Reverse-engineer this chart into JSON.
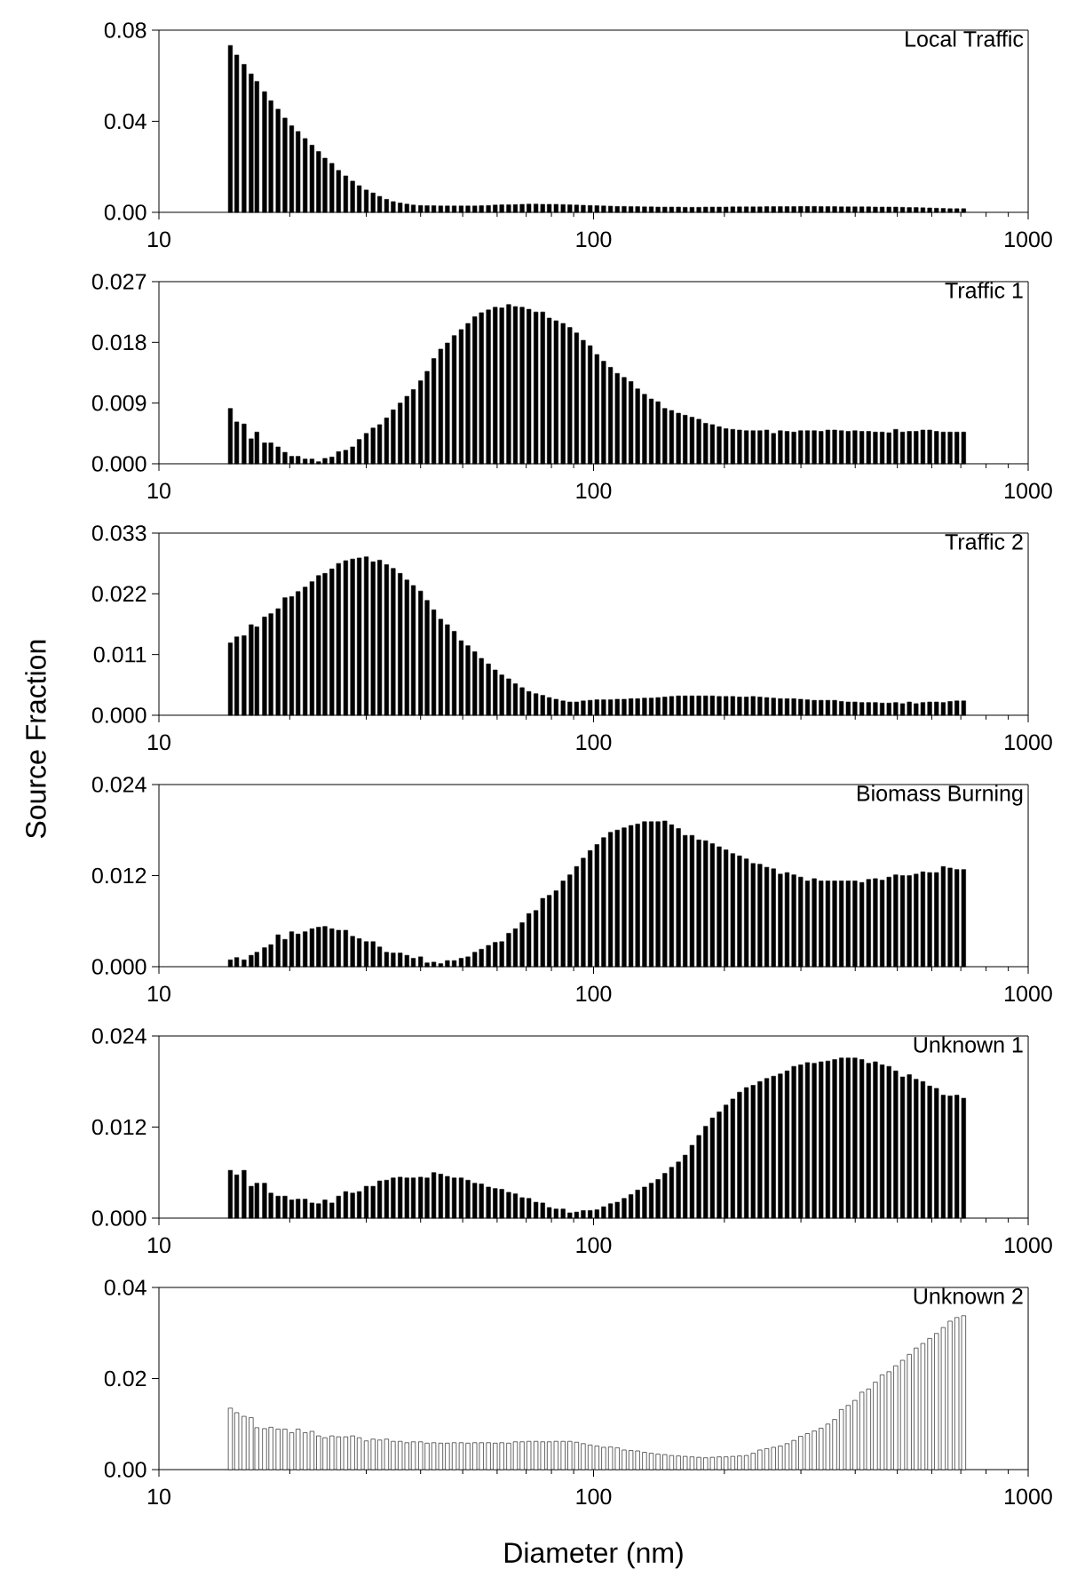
{
  "chart_data": [
    {
      "type": "bar",
      "title": "Local Traffic",
      "log": "x",
      "color": "#000000",
      "x": [
        14.6,
        15.1,
        15.7,
        16.3,
        16.8,
        17.5,
        18.1,
        18.8,
        19.5,
        20.2,
        20.9,
        21.7,
        22.5,
        23.3,
        24.1,
        25.0,
        25.9,
        26.9,
        27.9,
        28.9,
        30.0,
        31.1,
        32.2,
        33.4,
        34.6,
        35.9,
        37.2,
        38.5,
        40.0,
        41.4,
        42.9,
        44.5,
        46.1,
        47.8,
        49.6,
        51.4,
        53.3,
        55.2,
        57.3,
        59.4,
        61.5,
        63.8,
        66.1,
        68.5,
        71.0,
        73.7,
        76.4,
        79.1,
        82.0,
        85.1,
        88.2,
        91.4,
        94.7,
        98.2,
        101.8,
        105.5,
        109.4,
        113.4,
        117.6,
        121.9,
        126.3,
        131.0,
        135.8,
        140.7,
        145.9,
        151.2,
        156.8,
        162.5,
        168.5,
        174.7,
        181.1,
        187.7,
        194.6,
        201.7,
        209.1,
        216.7,
        224.7,
        232.9,
        241.4,
        250.3,
        259.5,
        269.0,
        278.8,
        289.0,
        299.6,
        310.6,
        322.0,
        333.8,
        346.0,
        358.7,
        371.8,
        385.4,
        399.5,
        414.2,
        429.4,
        445.1,
        461.4,
        478.3,
        495.8,
        514.0,
        532.8,
        552.3,
        572.5,
        593.5,
        615.3,
        637.8,
        661.2,
        685.4,
        710.5
      ],
      "values": [
        0.0733,
        0.0691,
        0.065,
        0.0608,
        0.0575,
        0.053,
        0.049,
        0.0453,
        0.0414,
        0.038,
        0.0355,
        0.0324,
        0.0295,
        0.0267,
        0.0238,
        0.0215,
        0.0184,
        0.016,
        0.0137,
        0.0117,
        0.0098,
        0.0085,
        0.007,
        0.0057,
        0.0047,
        0.0041,
        0.0036,
        0.0032,
        0.003,
        0.0029,
        0.0029,
        0.0028,
        0.0028,
        0.0028,
        0.0028,
        0.0028,
        0.0028,
        0.0029,
        0.003,
        0.0032,
        0.0033,
        0.0033,
        0.0034,
        0.0035,
        0.0036,
        0.0036,
        0.0035,
        0.0035,
        0.0035,
        0.0034,
        0.0033,
        0.0032,
        0.0031,
        0.003,
        0.0029,
        0.0028,
        0.0027,
        0.0026,
        0.0026,
        0.0025,
        0.0025,
        0.0024,
        0.0024,
        0.0023,
        0.0023,
        0.0023,
        0.0023,
        0.0022,
        0.0022,
        0.0022,
        0.0023,
        0.0023,
        0.0023,
        0.0023,
        0.0024,
        0.0024,
        0.0024,
        0.0024,
        0.0024,
        0.0025,
        0.0025,
        0.0025,
        0.0025,
        0.0025,
        0.0026,
        0.0026,
        0.0026,
        0.0025,
        0.0025,
        0.0025,
        0.0024,
        0.0024,
        0.0024,
        0.0024,
        0.0024,
        0.0023,
        0.0023,
        0.0023,
        0.0023,
        0.0022,
        0.0021,
        0.0021,
        0.002,
        0.0019,
        0.0018,
        0.0017,
        0.0016,
        0.0016,
        0.0016
      ],
      "xlim": [
        10,
        1000
      ],
      "xticks": [
        10,
        {
          "value": 20,
          "label": null
        },
        {
          "value": 30,
          "label": null
        },
        {
          "value": 40,
          "label": null
        },
        {
          "value": 50,
          "label": null
        },
        {
          "value": 60,
          "label": null
        },
        {
          "value": 70,
          "label": null
        },
        {
          "value": 80,
          "label": null
        },
        {
          "value": 90,
          "label": null
        },
        100,
        {
          "value": 200,
          "label": null
        },
        {
          "value": 300,
          "label": null
        },
        {
          "value": 400,
          "label": null
        },
        {
          "value": 500,
          "label": null
        },
        {
          "value": 600,
          "label": null
        },
        {
          "value": 700,
          "label": null
        },
        {
          "value": 800,
          "label": null
        },
        {
          "value": 900,
          "label": null
        },
        1000
      ],
      "ylim": [
        0,
        0.08
      ],
      "yticks": [
        {
          "value": 0,
          "label": "0.00"
        },
        {
          "value": 0.04,
          "label": "0.04"
        },
        {
          "value": 0.08,
          "label": "0.08"
        }
      ]
    },
    {
      "type": "bar",
      "title": "Traffic 1",
      "log": "x",
      "color": "#000000",
      "x": [
        14.6,
        15.1,
        15.7,
        16.3,
        16.8,
        17.5,
        18.1,
        18.8,
        19.5,
        20.2,
        20.9,
        21.7,
        22.5,
        23.3,
        24.1,
        25.0,
        25.9,
        26.9,
        27.9,
        28.9,
        30.0,
        31.1,
        32.2,
        33.4,
        34.6,
        35.9,
        37.2,
        38.5,
        40.0,
        41.4,
        42.9,
        44.5,
        46.1,
        47.8,
        49.6,
        51.4,
        53.3,
        55.2,
        57.3,
        59.4,
        61.5,
        63.8,
        66.1,
        68.5,
        71.0,
        73.7,
        76.4,
        79.1,
        82.0,
        85.1,
        88.2,
        91.4,
        94.7,
        98.2,
        101.8,
        105.5,
        109.4,
        113.4,
        117.6,
        121.9,
        126.3,
        131.0,
        135.8,
        140.7,
        145.9,
        151.2,
        156.8,
        162.5,
        168.5,
        174.7,
        181.1,
        187.7,
        194.6,
        201.7,
        209.1,
        216.7,
        224.7,
        232.9,
        241.4,
        250.3,
        259.5,
        269.0,
        278.8,
        289.0,
        299.6,
        310.6,
        322.0,
        333.8,
        346.0,
        358.7,
        371.8,
        385.4,
        399.5,
        414.2,
        429.4,
        445.1,
        461.4,
        478.3,
        495.8,
        514.0,
        532.8,
        552.3,
        572.5,
        593.5,
        615.3,
        637.8,
        661.2,
        685.4,
        710.5
      ],
      "values": [
        0.0082,
        0.0062,
        0.0059,
        0.0037,
        0.0047,
        0.0031,
        0.0031,
        0.0025,
        0.0017,
        0.0011,
        0.0011,
        0.0007,
        0.0007,
        0.0003,
        0.0008,
        0.001,
        0.0018,
        0.002,
        0.0025,
        0.0036,
        0.0045,
        0.0053,
        0.0058,
        0.0068,
        0.008,
        0.009,
        0.01,
        0.011,
        0.0123,
        0.0137,
        0.0156,
        0.017,
        0.0179,
        0.019,
        0.0199,
        0.0208,
        0.0218,
        0.0224,
        0.0228,
        0.0232,
        0.0231,
        0.0236,
        0.0233,
        0.0232,
        0.0229,
        0.0225,
        0.0225,
        0.0216,
        0.0212,
        0.0208,
        0.0202,
        0.0194,
        0.0183,
        0.0175,
        0.0162,
        0.0152,
        0.0143,
        0.0134,
        0.0128,
        0.0122,
        0.0111,
        0.0103,
        0.0096,
        0.0092,
        0.0082,
        0.0079,
        0.0075,
        0.0072,
        0.0069,
        0.0066,
        0.006,
        0.0058,
        0.0055,
        0.0052,
        0.0051,
        0.005,
        0.0049,
        0.0049,
        0.0049,
        0.005,
        0.0045,
        0.0049,
        0.0048,
        0.0047,
        0.0049,
        0.0049,
        0.0049,
        0.0048,
        0.005,
        0.005,
        0.0049,
        0.0048,
        0.0049,
        0.0048,
        0.0048,
        0.0047,
        0.0047,
        0.0046,
        0.0051,
        0.0047,
        0.0048,
        0.0048,
        0.005,
        0.005,
        0.0048,
        0.0047,
        0.0047,
        0.0047,
        0.0047
      ],
      "xlim": [
        10,
        1000
      ],
      "xticks": [
        10,
        {
          "value": 20,
          "label": null
        },
        {
          "value": 30,
          "label": null
        },
        {
          "value": 40,
          "label": null
        },
        {
          "value": 50,
          "label": null
        },
        {
          "value": 60,
          "label": null
        },
        {
          "value": 70,
          "label": null
        },
        {
          "value": 80,
          "label": null
        },
        {
          "value": 90,
          "label": null
        },
        100,
        {
          "value": 200,
          "label": null
        },
        {
          "value": 300,
          "label": null
        },
        {
          "value": 400,
          "label": null
        },
        {
          "value": 500,
          "label": null
        },
        {
          "value": 600,
          "label": null
        },
        {
          "value": 700,
          "label": null
        },
        {
          "value": 800,
          "label": null
        },
        {
          "value": 900,
          "label": null
        },
        1000
      ],
      "ylim": [
        0,
        0.027
      ],
      "yticks": [
        {
          "value": 0,
          "label": "0.000"
        },
        {
          "value": 0.009,
          "label": "0.009"
        },
        {
          "value": 0.018,
          "label": "0.018"
        },
        {
          "value": 0.027,
          "label": "0.027"
        }
      ]
    },
    {
      "type": "bar",
      "title": "Traffic 2",
      "ylabel": "Source Fraction",
      "log": "x",
      "color": "#000000",
      "x": [
        14.6,
        15.1,
        15.7,
        16.3,
        16.8,
        17.5,
        18.1,
        18.8,
        19.5,
        20.2,
        20.9,
        21.7,
        22.5,
        23.3,
        24.1,
        25.0,
        25.9,
        26.9,
        27.9,
        28.9,
        30.0,
        31.1,
        32.2,
        33.4,
        34.6,
        35.9,
        37.2,
        38.5,
        40.0,
        41.4,
        42.9,
        44.5,
        46.1,
        47.8,
        49.6,
        51.4,
        53.3,
        55.2,
        57.3,
        59.4,
        61.5,
        63.8,
        66.1,
        68.5,
        71.0,
        73.7,
        76.4,
        79.1,
        82.0,
        85.1,
        88.2,
        91.4,
        94.7,
        98.2,
        101.8,
        105.5,
        109.4,
        113.4,
        117.6,
        121.9,
        126.3,
        131.0,
        135.8,
        140.7,
        145.9,
        151.2,
        156.8,
        162.5,
        168.5,
        174.7,
        181.1,
        187.7,
        194.6,
        201.7,
        209.1,
        216.7,
        224.7,
        232.9,
        241.4,
        250.3,
        259.5,
        269.0,
        278.8,
        289.0,
        299.6,
        310.6,
        322.0,
        333.8,
        346.0,
        358.7,
        371.8,
        385.4,
        399.5,
        414.2,
        429.4,
        445.1,
        461.4,
        478.3,
        495.8,
        514.0,
        532.8,
        552.3,
        572.5,
        593.5,
        615.3,
        637.8,
        661.2,
        685.4,
        710.5
      ],
      "values": [
        0.0131,
        0.0142,
        0.0144,
        0.0164,
        0.016,
        0.0178,
        0.0184,
        0.0193,
        0.0213,
        0.0215,
        0.0224,
        0.0232,
        0.0242,
        0.0253,
        0.0257,
        0.0265,
        0.0275,
        0.028,
        0.0283,
        0.0285,
        0.0287,
        0.0278,
        0.0281,
        0.0273,
        0.0266,
        0.0257,
        0.0245,
        0.0235,
        0.0225,
        0.0208,
        0.0191,
        0.0174,
        0.0164,
        0.0152,
        0.0135,
        0.0126,
        0.0115,
        0.0103,
        0.0093,
        0.0082,
        0.0073,
        0.0066,
        0.0057,
        0.005,
        0.0043,
        0.0039,
        0.0036,
        0.0032,
        0.0029,
        0.0026,
        0.0024,
        0.0024,
        0.0026,
        0.0027,
        0.0028,
        0.0028,
        0.0028,
        0.0029,
        0.0029,
        0.003,
        0.003,
        0.0031,
        0.0031,
        0.0032,
        0.0033,
        0.0034,
        0.0035,
        0.0035,
        0.0035,
        0.0035,
        0.0035,
        0.0035,
        0.0034,
        0.0034,
        0.0034,
        0.0033,
        0.0033,
        0.0034,
        0.0033,
        0.0032,
        0.0031,
        0.003,
        0.003,
        0.003,
        0.0029,
        0.0028,
        0.0027,
        0.0027,
        0.0027,
        0.0027,
        0.0025,
        0.0024,
        0.0024,
        0.0023,
        0.0023,
        0.0023,
        0.0022,
        0.0022,
        0.0023,
        0.0021,
        0.0024,
        0.0021,
        0.0023,
        0.0024,
        0.0024,
        0.0023,
        0.0025,
        0.0026,
        0.0026
      ],
      "xlim": [
        10,
        1000
      ],
      "xticks": [
        10,
        {
          "value": 20,
          "label": null
        },
        {
          "value": 30,
          "label": null
        },
        {
          "value": 40,
          "label": null
        },
        {
          "value": 50,
          "label": null
        },
        {
          "value": 60,
          "label": null
        },
        {
          "value": 70,
          "label": null
        },
        {
          "value": 80,
          "label": null
        },
        {
          "value": 90,
          "label": null
        },
        100,
        {
          "value": 200,
          "label": null
        },
        {
          "value": 300,
          "label": null
        },
        {
          "value": 400,
          "label": null
        },
        {
          "value": 500,
          "label": null
        },
        {
          "value": 600,
          "label": null
        },
        {
          "value": 700,
          "label": null
        },
        {
          "value": 800,
          "label": null
        },
        {
          "value": 900,
          "label": null
        },
        1000
      ],
      "ylim": [
        0,
        0.033
      ],
      "yticks": [
        {
          "value": 0,
          "label": "0.000"
        },
        {
          "value": 0.011,
          "label": "0.011"
        },
        {
          "value": 0.022,
          "label": "0.022"
        },
        {
          "value": 0.033,
          "label": "0.033"
        }
      ]
    },
    {
      "type": "bar",
      "title": "Biomass Burning",
      "log": "x",
      "color": "#000000",
      "x": [
        14.6,
        15.1,
        15.7,
        16.3,
        16.8,
        17.5,
        18.1,
        18.8,
        19.5,
        20.2,
        20.9,
        21.7,
        22.5,
        23.3,
        24.1,
        25.0,
        25.9,
        26.9,
        27.9,
        28.9,
        30.0,
        31.1,
        32.2,
        33.4,
        34.6,
        35.9,
        37.2,
        38.5,
        40.0,
        41.4,
        42.9,
        44.5,
        46.1,
        47.8,
        49.6,
        51.4,
        53.3,
        55.2,
        57.3,
        59.4,
        61.5,
        63.8,
        66.1,
        68.5,
        71.0,
        73.7,
        76.4,
        79.1,
        82.0,
        85.1,
        88.2,
        91.4,
        94.7,
        98.2,
        101.8,
        105.5,
        109.4,
        113.4,
        117.6,
        121.9,
        126.3,
        131.0,
        135.8,
        140.7,
        145.9,
        151.2,
        156.8,
        162.5,
        168.5,
        174.7,
        181.1,
        187.7,
        194.6,
        201.7,
        209.1,
        216.7,
        224.7,
        232.9,
        241.4,
        250.3,
        259.5,
        269.0,
        278.8,
        289.0,
        299.6,
        310.6,
        322.0,
        333.8,
        346.0,
        358.7,
        371.8,
        385.4,
        399.5,
        414.2,
        429.4,
        445.1,
        461.4,
        478.3,
        495.8,
        514.0,
        532.8,
        552.3,
        572.5,
        593.5,
        615.3,
        637.8,
        661.2,
        685.4,
        710.5
      ],
      "values": [
        0.0009,
        0.0012,
        0.0009,
        0.0015,
        0.0019,
        0.0025,
        0.0029,
        0.0042,
        0.0036,
        0.0046,
        0.0043,
        0.0046,
        0.005,
        0.0052,
        0.0053,
        0.005,
        0.0048,
        0.0048,
        0.004,
        0.0037,
        0.0033,
        0.0033,
        0.0026,
        0.0019,
        0.0018,
        0.0018,
        0.0015,
        0.0011,
        0.0013,
        0.0005,
        0.0006,
        0.0004,
        0.0008,
        0.0008,
        0.0011,
        0.0013,
        0.0019,
        0.0023,
        0.0028,
        0.0032,
        0.0033,
        0.0044,
        0.005,
        0.0058,
        0.007,
        0.0074,
        0.009,
        0.0094,
        0.01,
        0.0113,
        0.0121,
        0.0132,
        0.0143,
        0.0153,
        0.0161,
        0.017,
        0.0177,
        0.018,
        0.0183,
        0.0186,
        0.0188,
        0.0191,
        0.0191,
        0.0191,
        0.0192,
        0.0187,
        0.0182,
        0.0173,
        0.0173,
        0.0167,
        0.0166,
        0.0162,
        0.0158,
        0.0154,
        0.0149,
        0.0146,
        0.0142,
        0.0136,
        0.0135,
        0.0131,
        0.0129,
        0.0122,
        0.0124,
        0.0121,
        0.0118,
        0.0113,
        0.0116,
        0.0113,
        0.0113,
        0.0113,
        0.0113,
        0.0113,
        0.0113,
        0.0111,
        0.0115,
        0.0116,
        0.0114,
        0.0118,
        0.0121,
        0.012,
        0.012,
        0.0122,
        0.0125,
        0.0124,
        0.0124,
        0.0132,
        0.013,
        0.0128,
        0.0128
      ],
      "xlim": [
        10,
        1000
      ],
      "xticks": [
        10,
        {
          "value": 20,
          "label": null
        },
        {
          "value": 30,
          "label": null
        },
        {
          "value": 40,
          "label": null
        },
        {
          "value": 50,
          "label": null
        },
        {
          "value": 60,
          "label": null
        },
        {
          "value": 70,
          "label": null
        },
        {
          "value": 80,
          "label": null
        },
        {
          "value": 90,
          "label": null
        },
        100,
        {
          "value": 200,
          "label": null
        },
        {
          "value": 300,
          "label": null
        },
        {
          "value": 400,
          "label": null
        },
        {
          "value": 500,
          "label": null
        },
        {
          "value": 600,
          "label": null
        },
        {
          "value": 700,
          "label": null
        },
        {
          "value": 800,
          "label": null
        },
        {
          "value": 900,
          "label": null
        },
        1000
      ],
      "ylim": [
        0,
        0.024
      ],
      "yticks": [
        {
          "value": 0,
          "label": "0.000"
        },
        {
          "value": 0.012,
          "label": "0.012"
        },
        {
          "value": 0.024,
          "label": "0.024"
        }
      ]
    },
    {
      "type": "bar",
      "title": "Unknown 1",
      "log": "x",
      "color": "#000000",
      "x": [
        14.6,
        15.1,
        15.7,
        16.3,
        16.8,
        17.5,
        18.1,
        18.8,
        19.5,
        20.2,
        20.9,
        21.7,
        22.5,
        23.3,
        24.1,
        25.0,
        25.9,
        26.9,
        27.9,
        28.9,
        30.0,
        31.1,
        32.2,
        33.4,
        34.6,
        35.9,
        37.2,
        38.5,
        40.0,
        41.4,
        42.9,
        44.5,
        46.1,
        47.8,
        49.6,
        51.4,
        53.3,
        55.2,
        57.3,
        59.4,
        61.5,
        63.8,
        66.1,
        68.5,
        71.0,
        73.7,
        76.4,
        79.1,
        82.0,
        85.1,
        88.2,
        91.4,
        94.7,
        98.2,
        101.8,
        105.5,
        109.4,
        113.4,
        117.6,
        121.9,
        126.3,
        131.0,
        135.8,
        140.7,
        145.9,
        151.2,
        156.8,
        162.5,
        168.5,
        174.7,
        181.1,
        187.7,
        194.6,
        201.7,
        209.1,
        216.7,
        224.7,
        232.9,
        241.4,
        250.3,
        259.5,
        269.0,
        278.8,
        289.0,
        299.6,
        310.6,
        322.0,
        333.8,
        346.0,
        358.7,
        371.8,
        385.4,
        399.5,
        414.2,
        429.4,
        445.1,
        461.4,
        478.3,
        495.8,
        514.0,
        532.8,
        552.3,
        572.5,
        593.5,
        615.3,
        637.8,
        661.2,
        685.4,
        710.5
      ],
      "values": [
        0.0063,
        0.0057,
        0.0063,
        0.0042,
        0.0046,
        0.0046,
        0.0033,
        0.0029,
        0.0029,
        0.0024,
        0.0025,
        0.0025,
        0.002,
        0.0019,
        0.0024,
        0.002,
        0.0029,
        0.0035,
        0.0033,
        0.0035,
        0.0042,
        0.0042,
        0.0049,
        0.005,
        0.0053,
        0.0054,
        0.0053,
        0.0053,
        0.0054,
        0.0053,
        0.006,
        0.0058,
        0.0055,
        0.0053,
        0.0053,
        0.005,
        0.0046,
        0.0045,
        0.0041,
        0.0039,
        0.0038,
        0.0034,
        0.0032,
        0.0027,
        0.0026,
        0.0021,
        0.002,
        0.0014,
        0.0012,
        0.0012,
        0.0007,
        0.0008,
        0.001,
        0.001,
        0.0011,
        0.0015,
        0.0019,
        0.0021,
        0.0026,
        0.0031,
        0.0037,
        0.0041,
        0.0046,
        0.0051,
        0.0059,
        0.0067,
        0.0074,
        0.0083,
        0.0096,
        0.0109,
        0.0121,
        0.0132,
        0.014,
        0.0149,
        0.0157,
        0.0166,
        0.0172,
        0.0175,
        0.018,
        0.0184,
        0.0187,
        0.019,
        0.0194,
        0.02,
        0.0202,
        0.0205,
        0.0204,
        0.0206,
        0.0207,
        0.0209,
        0.0211,
        0.0211,
        0.0211,
        0.0209,
        0.0204,
        0.0206,
        0.0202,
        0.02,
        0.0194,
        0.0186,
        0.0189,
        0.0183,
        0.018,
        0.0174,
        0.0171,
        0.0162,
        0.0161,
        0.0162,
        0.0158
      ],
      "xlim": [
        10,
        1000
      ],
      "xticks": [
        10,
        {
          "value": 20,
          "label": null
        },
        {
          "value": 30,
          "label": null
        },
        {
          "value": 40,
          "label": null
        },
        {
          "value": 50,
          "label": null
        },
        {
          "value": 60,
          "label": null
        },
        {
          "value": 70,
          "label": null
        },
        {
          "value": 80,
          "label": null
        },
        {
          "value": 90,
          "label": null
        },
        100,
        {
          "value": 200,
          "label": null
        },
        {
          "value": 300,
          "label": null
        },
        {
          "value": 400,
          "label": null
        },
        {
          "value": 500,
          "label": null
        },
        {
          "value": 600,
          "label": null
        },
        {
          "value": 700,
          "label": null
        },
        {
          "value": 800,
          "label": null
        },
        {
          "value": 900,
          "label": null
        },
        1000
      ],
      "ylim": [
        0,
        0.024
      ],
      "yticks": [
        {
          "value": 0,
          "label": "0.000"
        },
        {
          "value": 0.012,
          "label": "0.012"
        },
        {
          "value": 0.024,
          "label": "0.024"
        }
      ]
    },
    {
      "type": "bar",
      "title": "Unknown 2",
      "xlabel": "Diameter (nm)",
      "log": "x",
      "color": "#ffffff",
      "x": [
        14.6,
        15.1,
        15.7,
        16.3,
        16.8,
        17.5,
        18.1,
        18.8,
        19.5,
        20.2,
        20.9,
        21.7,
        22.5,
        23.3,
        24.1,
        25.0,
        25.9,
        26.9,
        27.9,
        28.9,
        30.0,
        31.1,
        32.2,
        33.4,
        34.6,
        35.9,
        37.2,
        38.5,
        40.0,
        41.4,
        42.9,
        44.5,
        46.1,
        47.8,
        49.6,
        51.4,
        53.3,
        55.2,
        57.3,
        59.4,
        61.5,
        63.8,
        66.1,
        68.5,
        71.0,
        73.7,
        76.4,
        79.1,
        82.0,
        85.1,
        88.2,
        91.4,
        94.7,
        98.2,
        101.8,
        105.5,
        109.4,
        113.4,
        117.6,
        121.9,
        126.3,
        131.0,
        135.8,
        140.7,
        145.9,
        151.2,
        156.8,
        162.5,
        168.5,
        174.7,
        181.1,
        187.7,
        194.6,
        201.7,
        209.1,
        216.7,
        224.7,
        232.9,
        241.4,
        250.3,
        259.5,
        269.0,
        278.8,
        289.0,
        299.6,
        310.6,
        322.0,
        333.8,
        346.0,
        358.7,
        371.8,
        385.4,
        399.5,
        414.2,
        429.4,
        445.1,
        461.4,
        478.3,
        495.8,
        514.0,
        532.8,
        552.3,
        572.5,
        593.5,
        615.3,
        637.8,
        661.2,
        685.4,
        710.5
      ],
      "values": [
        0.0135,
        0.0125,
        0.0117,
        0.0114,
        0.0092,
        0.009,
        0.0093,
        0.0089,
        0.0089,
        0.0081,
        0.0089,
        0.0081,
        0.0084,
        0.0074,
        0.007,
        0.0074,
        0.0072,
        0.0072,
        0.0074,
        0.007,
        0.0063,
        0.0067,
        0.0065,
        0.0067,
        0.0062,
        0.0062,
        0.0059,
        0.0061,
        0.0061,
        0.0058,
        0.0059,
        0.0058,
        0.0058,
        0.0059,
        0.0059,
        0.0058,
        0.0059,
        0.0059,
        0.0059,
        0.0058,
        0.0059,
        0.0058,
        0.0061,
        0.0061,
        0.0062,
        0.0062,
        0.0061,
        0.0061,
        0.0062,
        0.0062,
        0.0062,
        0.006,
        0.0057,
        0.0054,
        0.0052,
        0.0049,
        0.005,
        0.0048,
        0.0043,
        0.0042,
        0.0041,
        0.0038,
        0.0036,
        0.0034,
        0.0033,
        0.0031,
        0.003,
        0.0029,
        0.0028,
        0.0027,
        0.0026,
        0.0027,
        0.0028,
        0.0028,
        0.0029,
        0.003,
        0.0031,
        0.0036,
        0.0043,
        0.0046,
        0.0049,
        0.0052,
        0.0057,
        0.0064,
        0.0073,
        0.0079,
        0.0085,
        0.0091,
        0.01,
        0.011,
        0.0132,
        0.0141,
        0.0152,
        0.017,
        0.0177,
        0.0192,
        0.0208,
        0.0215,
        0.0228,
        0.024,
        0.0253,
        0.0267,
        0.0277,
        0.0288,
        0.0299,
        0.0312,
        0.0326,
        0.0334,
        0.0338
      ],
      "xlim": [
        10,
        1000
      ],
      "xticks": [
        10,
        {
          "value": 20,
          "label": null
        },
        {
          "value": 30,
          "label": null
        },
        {
          "value": 40,
          "label": null
        },
        {
          "value": 50,
          "label": null
        },
        {
          "value": 60,
          "label": null
        },
        {
          "value": 70,
          "label": null
        },
        {
          "value": 80,
          "label": null
        },
        {
          "value": 90,
          "label": null
        },
        100,
        {
          "value": 200,
          "label": null
        },
        {
          "value": 300,
          "label": null
        },
        {
          "value": 400,
          "label": null
        },
        {
          "value": 500,
          "label": null
        },
        {
          "value": 600,
          "label": null
        },
        {
          "value": 700,
          "label": null
        },
        {
          "value": 800,
          "label": null
        },
        {
          "value": 900,
          "label": null
        },
        1000
      ],
      "ylim": [
        0,
        0.04
      ],
      "yticks": [
        {
          "value": 0,
          "label": "0.00"
        },
        {
          "value": 0.02,
          "label": "0.02"
        },
        {
          "value": 0.04,
          "label": "0.04"
        }
      ]
    }
  ]
}
